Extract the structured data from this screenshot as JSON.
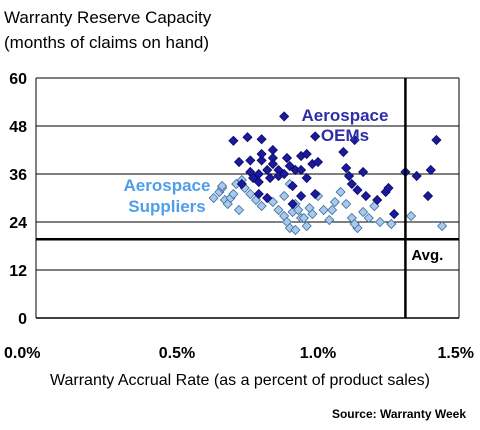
{
  "chart_data": {
    "type": "scatter",
    "title": "Warranty Reserve Capacity",
    "subtitle": "(months of claims on hand)",
    "xlabel": "Warranty Accrual Rate (as a percent of product sales)",
    "ylabel": "",
    "xlim": [
      0,
      1.5
    ],
    "ylim": [
      0,
      60
    ],
    "xticks": [
      "0.0%",
      "0.5%",
      "1.0%",
      "1.5%"
    ],
    "xtick_values": [
      0,
      0.5,
      1.0,
      1.5
    ],
    "yticks": [
      "0",
      "12",
      "24",
      "36",
      "48",
      "60"
    ],
    "ytick_values": [
      0,
      12,
      24,
      36,
      48,
      60
    ],
    "grid": "horizontal",
    "reference_lines": [
      {
        "axis": "y",
        "value": 19.7,
        "label": "Avg."
      },
      {
        "axis": "x",
        "value": 1.31,
        "label": ""
      }
    ],
    "annotations": [
      {
        "text_lines": [
          "Aerospace",
          "OEMs"
        ],
        "color": "#2E2EA8"
      },
      {
        "text_lines": [
          "Aerospace",
          "Suppliers"
        ],
        "color": "#4F9FE8"
      }
    ],
    "source": "Source: Warranty Week",
    "colors": {
      "oem": "#1a1aa0",
      "supplier": "#a8c8ec",
      "supplier_edge": "#3a6a9a"
    },
    "series": [
      {
        "name": "Aerospace OEMs",
        "color": "#1a1aa0",
        "points": [
          [
            0.7,
            44.3
          ],
          [
            0.75,
            45.2
          ],
          [
            0.8,
            44.7
          ],
          [
            0.88,
            50.4
          ],
          [
            0.99,
            45.4
          ],
          [
            1.13,
            44.5
          ],
          [
            1.42,
            44.5
          ],
          [
            0.72,
            39.0
          ],
          [
            0.76,
            36.5
          ],
          [
            0.76,
            39.4
          ],
          [
            0.79,
            36.0
          ],
          [
            0.8,
            39.4
          ],
          [
            0.82,
            37.0
          ],
          [
            0.8,
            41.0
          ],
          [
            0.84,
            40.0
          ],
          [
            0.84,
            38.5
          ],
          [
            0.86,
            37.0
          ],
          [
            0.86,
            35.5
          ],
          [
            0.83,
            35.0
          ],
          [
            0.79,
            34.0
          ],
          [
            0.73,
            33.5
          ],
          [
            0.88,
            36.0
          ],
          [
            0.89,
            40.0
          ],
          [
            0.9,
            38.0
          ],
          [
            0.91,
            33.0
          ],
          [
            0.92,
            37.0
          ],
          [
            0.94,
            40.5
          ],
          [
            0.96,
            41.0
          ],
          [
            0.94,
            37.0
          ],
          [
            0.96,
            35.0
          ],
          [
            0.98,
            38.5
          ],
          [
            1.0,
            39.0
          ],
          [
            0.94,
            30.5
          ],
          [
            0.99,
            31.0
          ],
          [
            0.91,
            28.5
          ],
          [
            1.09,
            41.5
          ],
          [
            1.1,
            37.5
          ],
          [
            1.11,
            35.5
          ],
          [
            1.12,
            33.5
          ],
          [
            1.14,
            32.0
          ],
          [
            1.16,
            36.5
          ],
          [
            1.17,
            30.5
          ],
          [
            1.21,
            29.5
          ],
          [
            1.24,
            31.5
          ],
          [
            1.25,
            32.5
          ],
          [
            1.27,
            26.0
          ],
          [
            1.31,
            36.5
          ],
          [
            1.35,
            35.5
          ],
          [
            1.39,
            30.5
          ],
          [
            1.4,
            37.0
          ],
          [
            0.82,
            30.0
          ],
          [
            0.79,
            31.0
          ],
          [
            0.77,
            35.0
          ],
          [
            0.84,
            42.0
          ]
        ]
      },
      {
        "name": "Aerospace Suppliers",
        "color": "#a8c8ec",
        "points": [
          [
            0.63,
            30.0
          ],
          [
            0.65,
            31.5
          ],
          [
            0.66,
            32.5
          ],
          [
            0.67,
            29.5
          ],
          [
            0.68,
            28.5
          ],
          [
            0.69,
            30.0
          ],
          [
            0.7,
            31.0
          ],
          [
            0.71,
            33.5
          ],
          [
            0.73,
            34.5
          ],
          [
            0.74,
            32.5
          ],
          [
            0.76,
            31.0
          ],
          [
            0.78,
            29.5
          ],
          [
            0.8,
            28.0
          ],
          [
            0.82,
            30.0
          ],
          [
            0.84,
            29.0
          ],
          [
            0.86,
            27.0
          ],
          [
            0.88,
            25.5
          ],
          [
            0.89,
            24.0
          ],
          [
            0.9,
            22.5
          ],
          [
            0.91,
            26.5
          ],
          [
            0.92,
            28.5
          ],
          [
            0.93,
            27.0
          ],
          [
            0.94,
            25.0
          ],
          [
            0.96,
            23.0
          ],
          [
            0.97,
            27.5
          ],
          [
            0.98,
            26.0
          ],
          [
            1.0,
            30.5
          ],
          [
            1.02,
            27.0
          ],
          [
            1.04,
            24.5
          ],
          [
            1.05,
            27.0
          ],
          [
            1.06,
            29.0
          ],
          [
            1.08,
            31.5
          ],
          [
            1.1,
            28.5
          ],
          [
            1.12,
            25.0
          ],
          [
            1.14,
            22.5
          ],
          [
            1.16,
            26.5
          ],
          [
            1.18,
            25.0
          ],
          [
            1.2,
            28.0
          ],
          [
            1.22,
            24.0
          ],
          [
            1.26,
            23.5
          ],
          [
            1.33,
            25.5
          ],
          [
            1.44,
            23.0
          ],
          [
            0.88,
            30.5
          ],
          [
            0.9,
            33.5
          ],
          [
            0.72,
            27.0
          ],
          [
            0.66,
            33.0
          ],
          [
            0.95,
            25.0
          ],
          [
            0.92,
            22.0
          ],
          [
            1.13,
            23.5
          ]
        ]
      }
    ]
  }
}
